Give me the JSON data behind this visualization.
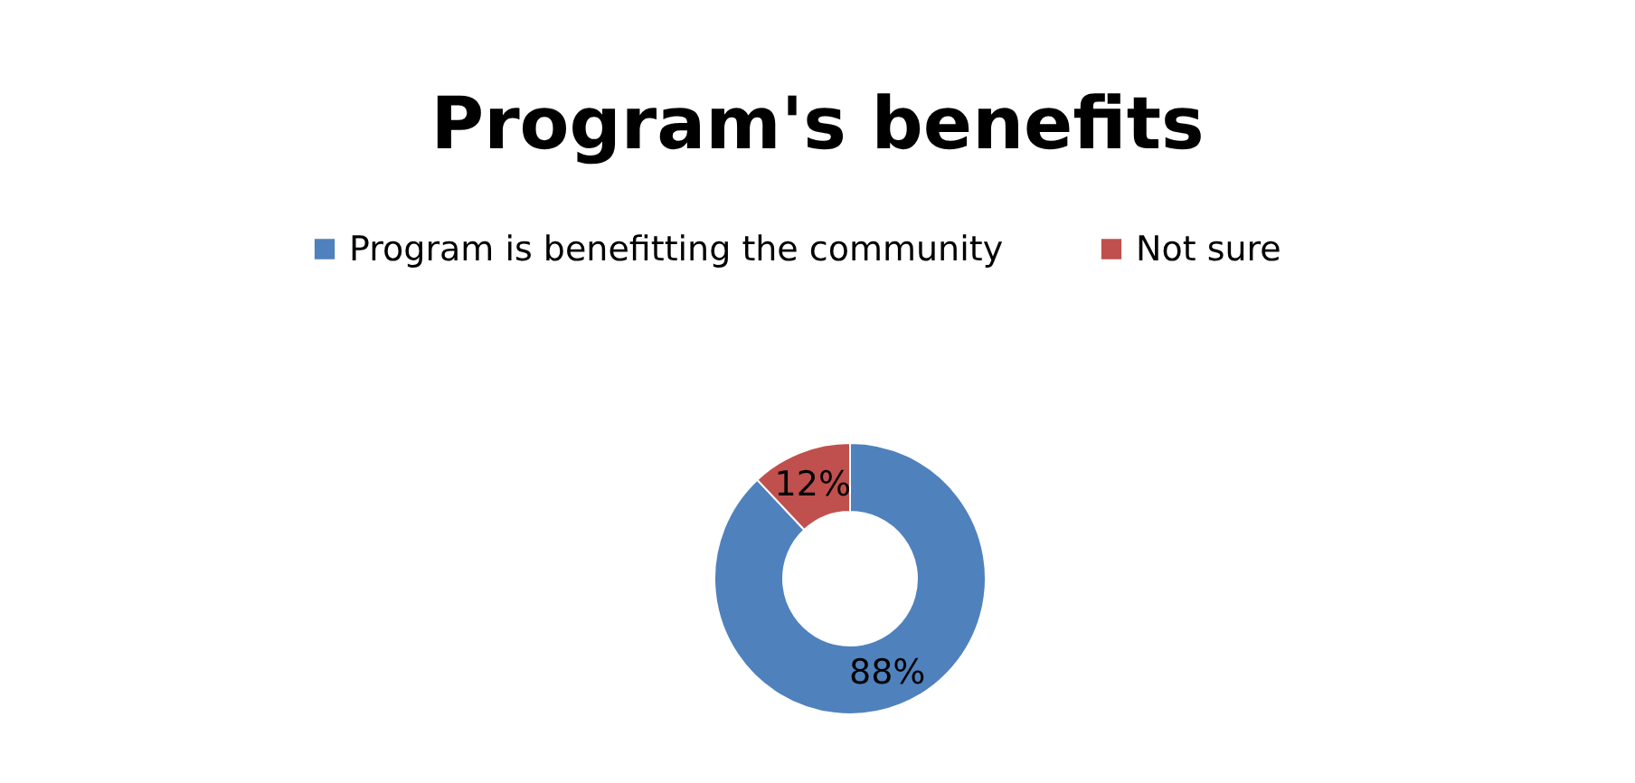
{
  "chart_data": {
    "type": "donut",
    "title": "Program's benefits",
    "categories": [
      "Program is benefitting the community",
      "Not sure"
    ],
    "values": [
      88,
      12
    ],
    "colors": [
      "#4f81bd",
      "#c0504d"
    ],
    "value_labels": [
      "88%",
      "12%"
    ],
    "legend": "top"
  }
}
